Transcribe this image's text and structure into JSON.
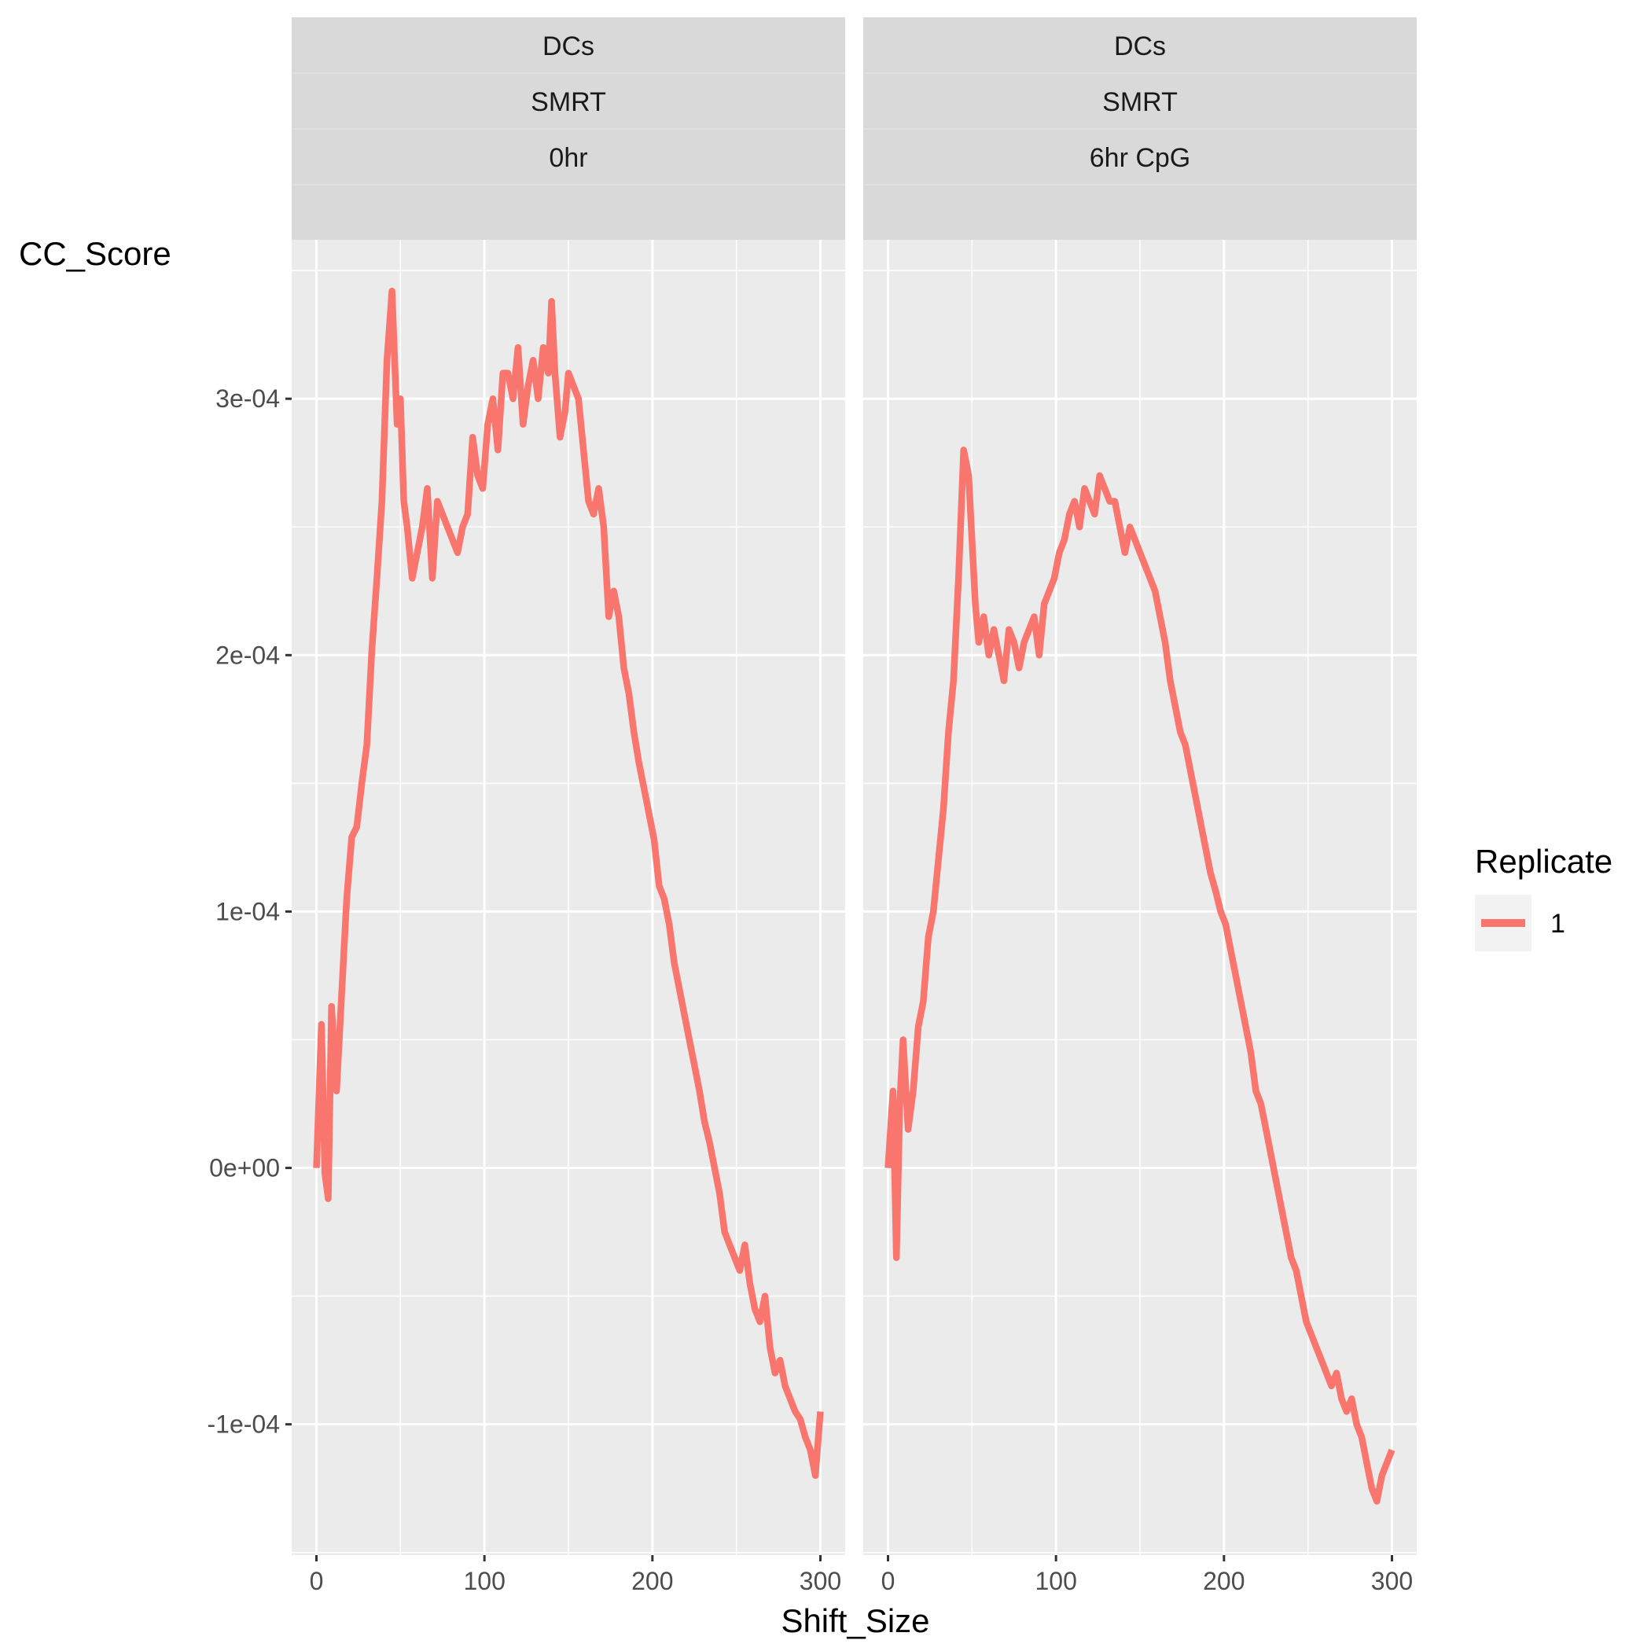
{
  "chart_data": {
    "type": "line",
    "xlabel": "Shift_Size",
    "ylabel": "CC_Score",
    "xlim": [
      0,
      300
    ],
    "ylim": [
      -0.000151,
      0.000362
    ],
    "x_ticks": [
      0,
      100,
      200,
      300
    ],
    "y_ticks": [
      {
        "value": -0.0001,
        "label": "-1e-04"
      },
      {
        "value": 0,
        "label": "0e+00"
      },
      {
        "value": 0.0001,
        "label": "1e-04"
      },
      {
        "value": 0.0002,
        "label": "2e-04"
      },
      {
        "value": 0.0003,
        "label": "3e-04"
      }
    ],
    "grid": true,
    "legend": {
      "title": "Replicate",
      "position": "right",
      "entries": [
        {
          "label": "1",
          "color": "#F8766D"
        }
      ]
    },
    "line_color": "#F8766D",
    "panels": [
      {
        "strips": [
          "DCs",
          "SMRT",
          "0hr"
        ],
        "series": [
          {
            "name": "1",
            "x": [
              0,
              3,
              5,
              7,
              9,
              12,
              15,
              18,
              21,
              24,
              27,
              30,
              33,
              36,
              39,
              42,
              45,
              48,
              50,
              52,
              54,
              57,
              60,
              63,
              66,
              69,
              72,
              75,
              78,
              81,
              84,
              87,
              90,
              93,
              96,
              99,
              102,
              105,
              108,
              111,
              114,
              117,
              120,
              123,
              126,
              129,
              132,
              135,
              138,
              140,
              142,
              145,
              148,
              150,
              153,
              156,
              159,
              162,
              165,
              168,
              171,
              174,
              177,
              180,
              183,
              186,
              189,
              192,
              195,
              198,
              201,
              204,
              207,
              210,
              213,
              216,
              219,
              222,
              225,
              228,
              231,
              234,
              237,
              240,
              243,
              246,
              249,
              252,
              255,
              258,
              261,
              264,
              267,
              270,
              273,
              276,
              279,
              282,
              285,
              288,
              291,
              294,
              297,
              300
            ],
            "y": [
              0.0,
              5.6e-05,
              -2e-06,
              -1.2e-05,
              6.3e-05,
              3e-05,
              6.8e-05,
              0.000105,
              0.000129,
              0.000133,
              0.00015,
              0.000165,
              0.000202,
              0.00023,
              0.00026,
              0.000315,
              0.000342,
              0.00029,
              0.0003,
              0.00026,
              0.00025,
              0.00023,
              0.00024,
              0.00025,
              0.000265,
              0.00023,
              0.00026,
              0.000255,
              0.00025,
              0.000245,
              0.00024,
              0.00025,
              0.000255,
              0.000285,
              0.00027,
              0.000265,
              0.00029,
              0.0003,
              0.00028,
              0.00031,
              0.00031,
              0.0003,
              0.00032,
              0.00029,
              0.000305,
              0.000315,
              0.0003,
              0.00032,
              0.00031,
              0.000338,
              0.00031,
              0.000285,
              0.000295,
              0.00031,
              0.000305,
              0.0003,
              0.00028,
              0.00026,
              0.000255,
              0.000265,
              0.00025,
              0.000215,
              0.000225,
              0.000215,
              0.000195,
              0.000185,
              0.00017,
              0.000158,
              0.000148,
              0.000138,
              0.000128,
              0.00011,
              0.000105,
              9.5e-05,
              8e-05,
              7e-05,
              6e-05,
              5e-05,
              4e-05,
              3e-05,
              1.8e-05,
              1e-05,
              0.0,
              -1e-05,
              -2.5e-05,
              -3e-05,
              -3.5e-05,
              -4e-05,
              -3e-05,
              -4.5e-05,
              -5.5e-05,
              -6e-05,
              -5e-05,
              -7e-05,
              -8e-05,
              -7.5e-05,
              -8.5e-05,
              -9e-05,
              -9.5e-05,
              -9.8e-05,
              -0.000105,
              -0.00011,
              -0.00012,
              -9.5e-05
            ]
          }
        ]
      },
      {
        "strips": [
          "DCs",
          "SMRT",
          "6hr CpG"
        ],
        "series": [
          {
            "name": "1",
            "x": [
              0,
              3,
              5,
              7,
              9,
              12,
              15,
              18,
              21,
              24,
              27,
              30,
              33,
              36,
              39,
              42,
              45,
              48,
              50,
              52,
              54,
              57,
              60,
              63,
              66,
              69,
              72,
              75,
              78,
              81,
              84,
              87,
              90,
              93,
              96,
              99,
              102,
              105,
              108,
              111,
              114,
              117,
              120,
              123,
              126,
              129,
              132,
              135,
              138,
              141,
              144,
              147,
              150,
              153,
              156,
              159,
              162,
              165,
              168,
              171,
              174,
              177,
              180,
              183,
              186,
              189,
              192,
              195,
              198,
              201,
              204,
              207,
              210,
              213,
              216,
              219,
              222,
              225,
              228,
              231,
              234,
              237,
              240,
              243,
              246,
              249,
              252,
              255,
              258,
              261,
              264,
              267,
              270,
              273,
              276,
              279,
              282,
              285,
              288,
              291,
              294,
              297,
              300
            ],
            "y": [
              0.0,
              3e-05,
              -3.5e-05,
              2.5e-05,
              5e-05,
              1.5e-05,
              3e-05,
              5.5e-05,
              6.5e-05,
              9e-05,
              0.0001,
              0.00012,
              0.00014,
              0.00017,
              0.00019,
              0.00023,
              0.00028,
              0.00027,
              0.000245,
              0.00022,
              0.000205,
              0.000215,
              0.0002,
              0.00021,
              0.0002,
              0.00019,
              0.00021,
              0.000205,
              0.000195,
              0.000205,
              0.00021,
              0.000215,
              0.0002,
              0.00022,
              0.000225,
              0.00023,
              0.00024,
              0.000245,
              0.000255,
              0.00026,
              0.00025,
              0.000265,
              0.00026,
              0.000255,
              0.00027,
              0.000265,
              0.00026,
              0.00026,
              0.00025,
              0.00024,
              0.00025,
              0.000245,
              0.00024,
              0.000235,
              0.00023,
              0.000225,
              0.000215,
              0.000205,
              0.00019,
              0.00018,
              0.00017,
              0.000165,
              0.000155,
              0.000145,
              0.000135,
              0.000125,
              0.000115,
              0.000108,
              0.0001,
              9.5e-05,
              8.5e-05,
              7.5e-05,
              6.5e-05,
              5.5e-05,
              4.5e-05,
              3e-05,
              2.5e-05,
              1.5e-05,
              5e-06,
              -5e-06,
              -1.5e-05,
              -2.5e-05,
              -3.5e-05,
              -4e-05,
              -5e-05,
              -6e-05,
              -6.5e-05,
              -7e-05,
              -7.5e-05,
              -8e-05,
              -8.5e-05,
              -8e-05,
              -9e-05,
              -9.5e-05,
              -9e-05,
              -0.0001,
              -0.000105,
              -0.000115,
              -0.000125,
              -0.00013,
              -0.00012,
              -0.000115,
              -0.00011
            ]
          }
        ]
      }
    ]
  }
}
